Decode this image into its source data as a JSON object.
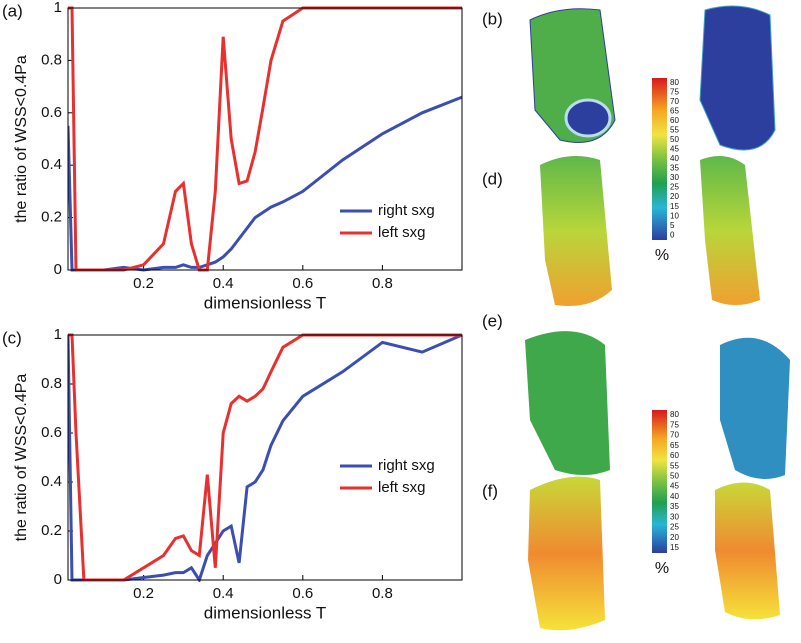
{
  "chart_data": [
    {
      "type": "line",
      "panel": "(a)",
      "xlabel": "dimensionless T",
      "ylabel": "the ratio of WSS<0.4Pa",
      "x": [
        0.01,
        0.02,
        0.03,
        0.05,
        0.1,
        0.15,
        0.2,
        0.25,
        0.28,
        0.3,
        0.32,
        0.34,
        0.36,
        0.38,
        0.4,
        0.42,
        0.44,
        0.46,
        0.48,
        0.5,
        0.52,
        0.55,
        0.6,
        0.7,
        0.8,
        0.9,
        1.0
      ],
      "series": [
        {
          "name": "right sxg",
          "color": "#3a4fb0",
          "values": [
            0.55,
            0,
            0,
            0,
            0,
            0.01,
            0,
            0.01,
            0.01,
            0.02,
            0.01,
            0.01,
            0.02,
            0.03,
            0.05,
            0.08,
            0.12,
            0.16,
            0.2,
            0.22,
            0.24,
            0.26,
            0.3,
            0.42,
            0.52,
            0.6,
            0.66
          ]
        },
        {
          "name": "left sxg",
          "color": "#e8302e",
          "values": [
            1,
            1,
            0,
            0,
            0,
            0,
            0.02,
            0.1,
            0.3,
            0.33,
            0.1,
            0,
            0,
            0.3,
            0.89,
            0.5,
            0.33,
            0.34,
            0.45,
            0.62,
            0.8,
            0.95,
            1,
            1,
            1,
            1,
            1
          ]
        }
      ],
      "xlim": [
        0.01,
        1
      ],
      "ylim": [
        0,
        1
      ],
      "xticks": [
        0.2,
        0.4,
        0.6,
        0.8
      ],
      "yticks": [
        0,
        0.2,
        0.4,
        0.6,
        0.8,
        1
      ],
      "legend": "lower right"
    },
    {
      "type": "line",
      "panel": "(c)",
      "xlabel": "dimensionless T",
      "ylabel": "the ratio of WSS<0.4Pa",
      "x": [
        0.01,
        0.02,
        0.03,
        0.05,
        0.1,
        0.15,
        0.2,
        0.25,
        0.28,
        0.3,
        0.32,
        0.34,
        0.36,
        0.38,
        0.4,
        0.42,
        0.44,
        0.46,
        0.48,
        0.5,
        0.52,
        0.55,
        0.6,
        0.7,
        0.8,
        0.9,
        1.0
      ],
      "series": [
        {
          "name": "right sxg",
          "color": "#3a4fb0",
          "values": [
            1,
            0,
            0,
            0,
            0,
            0,
            0.01,
            0.02,
            0.03,
            0.03,
            0.05,
            0,
            0.1,
            0.15,
            0.2,
            0.22,
            0.07,
            0.38,
            0.4,
            0.45,
            0.55,
            0.65,
            0.75,
            0.85,
            0.97,
            0.93,
            1
          ]
        },
        {
          "name": "left sxg",
          "color": "#e8302e",
          "values": [
            1,
            1,
            0.6,
            0,
            0,
            0,
            0.05,
            0.1,
            0.17,
            0.18,
            0.12,
            0.1,
            0.43,
            0.05,
            0.6,
            0.72,
            0.75,
            0.73,
            0.75,
            0.78,
            0.85,
            0.95,
            1,
            1,
            1,
            1,
            1
          ]
        }
      ],
      "xlim": [
        0.01,
        1
      ],
      "ylim": [
        0,
        1
      ],
      "xticks": [
        0.2,
        0.4,
        0.6,
        0.8
      ],
      "yticks": [
        0,
        0.2,
        0.4,
        0.6,
        0.8,
        1
      ],
      "legend": "lower right"
    }
  ],
  "renders": {
    "panels": [
      "(b)",
      "(d)",
      "(e)",
      "(f)"
    ],
    "colorbars": [
      {
        "ticks": [
          80,
          75,
          70,
          65,
          60,
          55,
          50,
          45,
          40,
          35,
          30,
          25,
          20,
          15,
          10,
          5,
          0
        ],
        "unit": "%"
      },
      {
        "ticks": [
          80,
          75,
          70,
          65,
          60,
          55,
          50,
          45,
          40,
          35,
          30,
          25,
          20,
          15
        ],
        "unit": "%"
      }
    ]
  }
}
